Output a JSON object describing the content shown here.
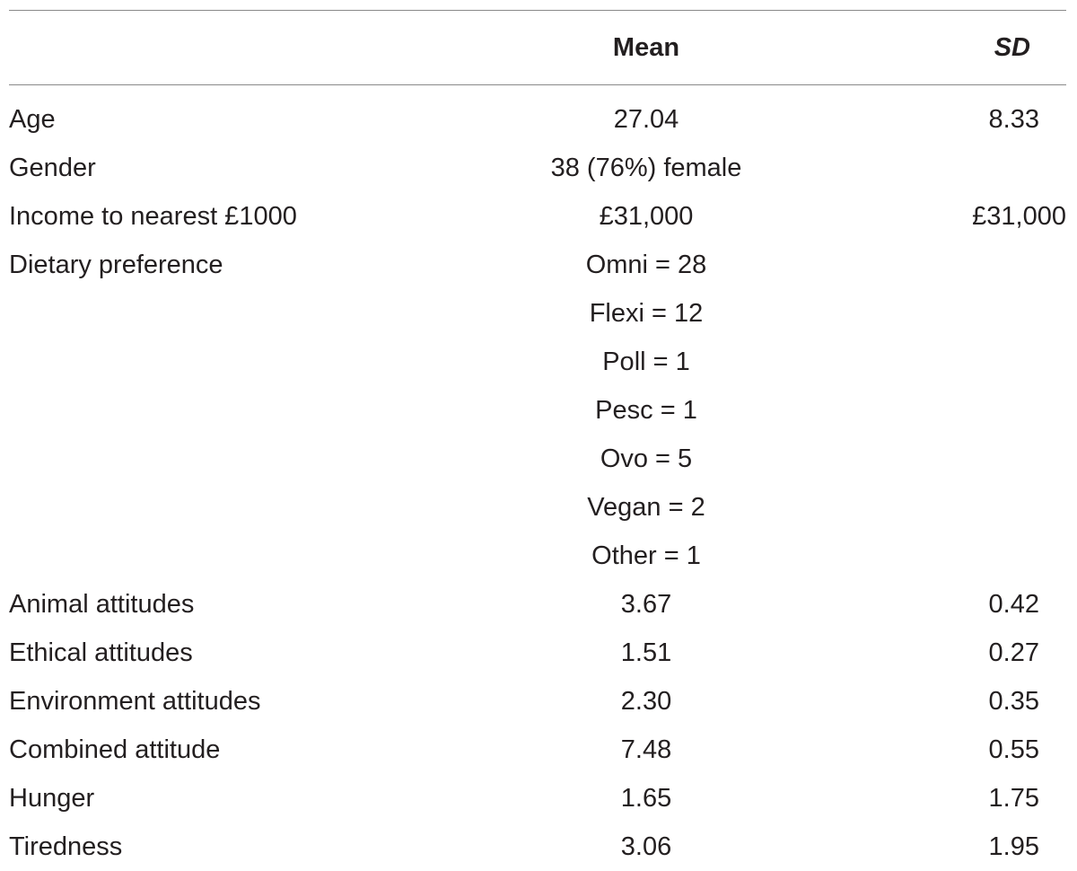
{
  "table": {
    "headers": {
      "label": "",
      "mean": "Mean",
      "sd": "SD"
    },
    "rows": [
      {
        "label": "Age",
        "mean": "27.04",
        "sd": "8.33"
      },
      {
        "label": "Gender",
        "mean": "38 (76%) female",
        "sd": ""
      },
      {
        "label": "Income to nearest £1000",
        "mean": "£31,000",
        "sd": "£31,000"
      },
      {
        "label": "Dietary preference",
        "mean": "Omni = 28",
        "sd": ""
      },
      {
        "label": "",
        "mean": "Flexi = 12",
        "sd": ""
      },
      {
        "label": "",
        "mean": "Poll = 1",
        "sd": ""
      },
      {
        "label": "",
        "mean": "Pesc = 1",
        "sd": ""
      },
      {
        "label": "",
        "mean": "Ovo = 5",
        "sd": ""
      },
      {
        "label": "",
        "mean": "Vegan = 2",
        "sd": ""
      },
      {
        "label": "",
        "mean": "Other = 1",
        "sd": ""
      },
      {
        "label": "Animal attitudes",
        "mean": "3.67",
        "sd": "0.42"
      },
      {
        "label": "Ethical attitudes",
        "mean": "1.51",
        "sd": "0.27"
      },
      {
        "label": "Environment attitudes",
        "mean": "2.30",
        "sd": "0.35"
      },
      {
        "label": "Combined attitude",
        "mean": "7.48",
        "sd": "0.55"
      },
      {
        "label": "Hunger",
        "mean": "1.65",
        "sd": "1.75"
      },
      {
        "label": "Tiredness",
        "mean": "3.06",
        "sd": "1.95"
      }
    ]
  }
}
